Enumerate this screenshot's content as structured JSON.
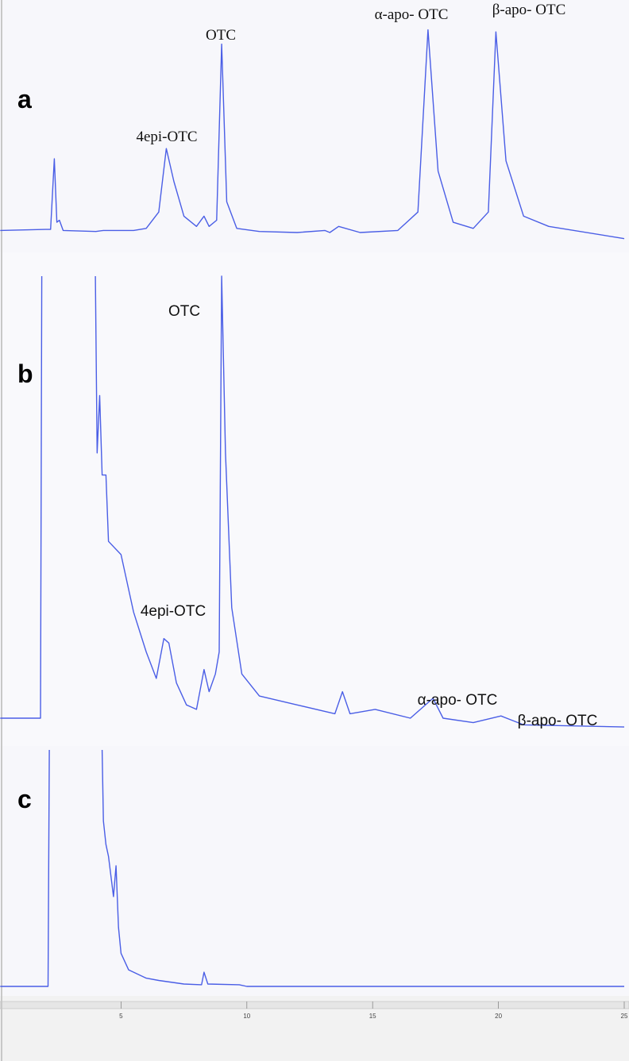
{
  "chart_data": [
    {
      "type": "line",
      "label": "a",
      "xlim": [
        0,
        25
      ],
      "ylim": [
        0,
        100
      ],
      "color": "#4a5ee6",
      "annotations": [
        "OTC",
        "4epi-OTC",
        "α-apo- OTC",
        "β-apo- OTC"
      ],
      "x": [
        0.2,
        2.0,
        2.2,
        2.35,
        2.45,
        2.55,
        2.7,
        4.0,
        4.3,
        5.5,
        6.0,
        6.5,
        6.8,
        7.1,
        7.5,
        8.0,
        8.3,
        8.5,
        8.8,
        9.0,
        9.2,
        9.6,
        10.5,
        12.0,
        13.1,
        13.3,
        13.65,
        14.5,
        16.0,
        16.8,
        17.2,
        17.6,
        18.2,
        19.0,
        19.6,
        19.9,
        20.3,
        21.0,
        22.0,
        25.0
      ],
      "values": [
        1,
        1.5,
        1.5,
        36,
        5,
        6,
        1,
        0.5,
        1,
        1,
        2,
        10,
        41,
        25,
        8,
        3,
        8,
        3,
        6,
        92,
        15,
        2,
        0.5,
        0,
        1,
        0,
        3,
        0,
        1,
        10,
        99,
        30,
        5,
        2,
        10,
        98,
        35,
        8,
        3,
        -3
      ]
    },
    {
      "type": "line",
      "label": "b",
      "xlim": [
        0,
        25
      ],
      "ylim": [
        0,
        100
      ],
      "color": "#4a5ee6",
      "annotations": [
        "OTC",
        "4epi-OTC",
        "α-apo- OTC",
        "β-apo- OTC"
      ],
      "x": [
        0.2,
        1.8,
        1.85,
        2.0,
        3.98,
        4.05,
        4.15,
        4.25,
        4.4,
        4.5,
        5.0,
        5.5,
        6.0,
        6.4,
        6.7,
        6.9,
        7.2,
        7.6,
        8.0,
        8.3,
        8.5,
        8.75,
        8.9,
        9.0,
        9.15,
        9.4,
        9.8,
        10.5,
        12.0,
        13.5,
        13.8,
        14.1,
        15.1,
        16.5,
        17.4,
        17.8,
        19.0,
        20.1,
        21.0,
        25.0
      ],
      "values": [
        0,
        0,
        100,
        null,
        100,
        60,
        73,
        55,
        55,
        40,
        37,
        24,
        15,
        9,
        18,
        17,
        8,
        3,
        2,
        11,
        6,
        10,
        15,
        100,
        60,
        25,
        10,
        5,
        3,
        1,
        6,
        1,
        2,
        0,
        4.5,
        0,
        -1,
        0.5,
        -1.5,
        -2
      ]
    },
    {
      "type": "line",
      "label": "c",
      "xlim": [
        0,
        25
      ],
      "ylim": [
        0,
        100
      ],
      "color": "#4a5ee6",
      "xticks": [
        5,
        10,
        15,
        20,
        25
      ],
      "x": [
        0.2,
        2.1,
        2.15,
        3.0,
        4.25,
        4.3,
        4.4,
        4.5,
        4.7,
        4.8,
        4.9,
        5.0,
        5.3,
        6.0,
        6.5,
        7.5,
        8.2,
        8.3,
        8.45,
        9.7,
        10.0,
        25.0
      ],
      "values": [
        0,
        0,
        100,
        null,
        100,
        70,
        60,
        55,
        38,
        51,
        25,
        14,
        7,
        3.5,
        2.5,
        1,
        0.7,
        6,
        1,
        0.7,
        0,
        0
      ]
    }
  ]
}
